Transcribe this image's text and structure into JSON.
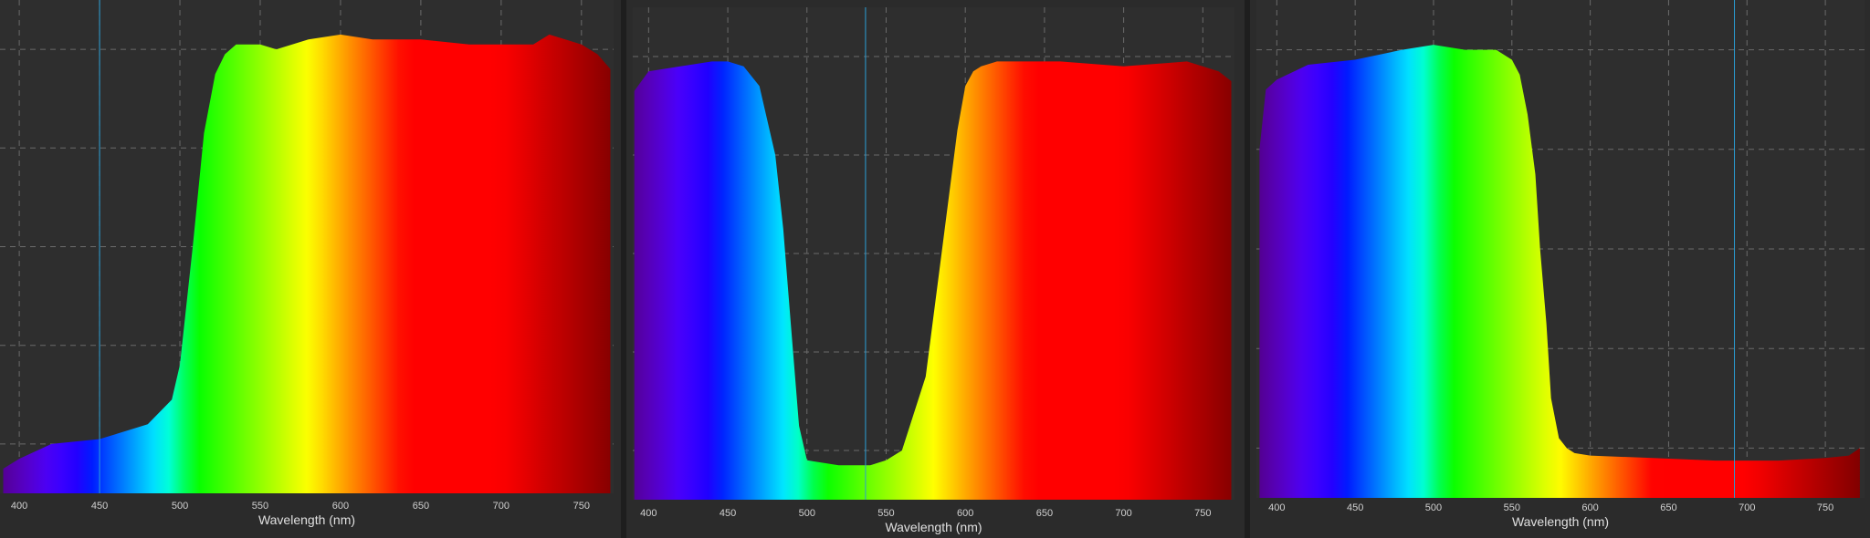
{
  "chart_data": [
    {
      "type": "area",
      "title": "",
      "xlabel": "Wavelength (nm)",
      "ylabel": "",
      "xlim": [
        388,
        770
      ],
      "ylim": [
        0,
        100
      ],
      "x_ticks": [
        400,
        450,
        500,
        550,
        600,
        650,
        700,
        750
      ],
      "grid": true,
      "fill": "wavelength-spectrum-gradient",
      "marker_line_nm": 450,
      "series": [
        {
          "x": [
            390,
            400,
            420,
            450,
            480,
            495,
            500,
            508,
            515,
            522,
            528,
            535,
            540,
            550,
            560,
            580,
            600,
            620,
            650,
            680,
            700,
            720,
            730,
            740,
            750,
            760,
            768
          ],
          "y": [
            5,
            7,
            10,
            11,
            14,
            19,
            26,
            50,
            73,
            85,
            89,
            91,
            91,
            91,
            90,
            92,
            93,
            92,
            92,
            91,
            91,
            91,
            93,
            92,
            91,
            89,
            86
          ]
        }
      ]
    },
    {
      "type": "area",
      "title": "",
      "xlabel": "Wavelength (nm)",
      "ylabel": "",
      "xlim": [
        390,
        770
      ],
      "ylim": [
        0,
        100
      ],
      "x_ticks": [
        400,
        450,
        500,
        550,
        600,
        650,
        700,
        750
      ],
      "grid": true,
      "fill": "wavelength-spectrum-gradient",
      "marker_line_nm": 537,
      "series": [
        {
          "x": [
            391,
            400,
            420,
            440,
            450,
            460,
            470,
            480,
            485,
            490,
            495,
            500,
            520,
            540,
            550,
            560,
            575,
            585,
            595,
            600,
            605,
            610,
            620,
            640,
            660,
            700,
            740,
            760,
            768
          ],
          "y": [
            83,
            87,
            88,
            89,
            89,
            88,
            84,
            70,
            55,
            35,
            15,
            8,
            7,
            7,
            8,
            10,
            25,
            50,
            75,
            84,
            87,
            88,
            89,
            89,
            89,
            88,
            89,
            87,
            85
          ]
        }
      ]
    },
    {
      "type": "area",
      "title": "",
      "xlabel": "Wavelength (nm)",
      "ylabel": "",
      "xlim": [
        387,
        775
      ],
      "ylim": [
        0,
        100
      ],
      "x_ticks": [
        400,
        450,
        500,
        550,
        600,
        650,
        700,
        750
      ],
      "grid": true,
      "fill": "wavelength-spectrum-gradient",
      "marker_line_nm": 692,
      "series": [
        {
          "x": [
            389,
            393,
            400,
            420,
            450,
            480,
            500,
            520,
            540,
            550,
            555,
            560,
            565,
            568,
            572,
            575,
            580,
            585,
            590,
            600,
            640,
            680,
            720,
            750,
            765,
            772
          ],
          "y": [
            70,
            82,
            84,
            87,
            88,
            90,
            91,
            90,
            90,
            88,
            85,
            77,
            65,
            50,
            35,
            20,
            12,
            10,
            9,
            8.5,
            8,
            7.5,
            7.5,
            8,
            8.5,
            10
          ]
        }
      ]
    }
  ]
}
